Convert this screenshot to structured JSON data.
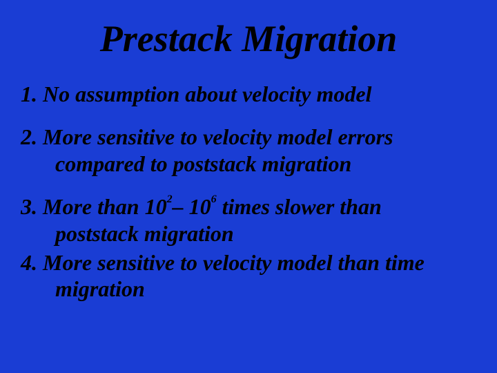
{
  "title": "Prestack Migration",
  "items": {
    "item1": {
      "num": "1.",
      "line1": "No assumption about velocity model"
    },
    "item2": {
      "num": "2.",
      "line1": "More sensitive to velocity model errors",
      "line2": "compared to poststack migration"
    },
    "item3": {
      "num": "3.",
      "prefix": "More than 10",
      "exp1": "2",
      "mid": "– 10",
      "exp2": "6",
      "suffix": " times slower than",
      "line2": "poststack migration"
    },
    "item4": {
      "num": "4.",
      "line1": "More sensitive to velocity model than time",
      "line2": "migration"
    }
  },
  "colors": {
    "background": "#1a3dd4",
    "text": "#000000"
  },
  "typography": {
    "title_fontsize": 54,
    "body_fontsize": 32,
    "font_family": "Times New Roman",
    "font_style": "italic",
    "font_weight": "bold"
  }
}
